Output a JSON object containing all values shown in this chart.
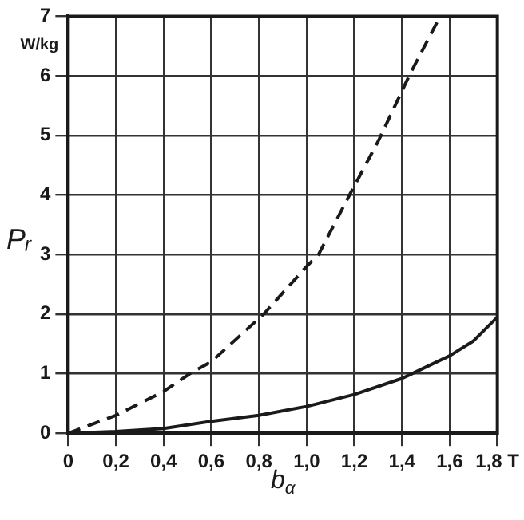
{
  "chart_data": {
    "type": "line",
    "xlabel": "b$_{α}$",
    "ylabel": "Pᵣ",
    "annotations": [
      "W/kg"
    ],
    "xlim": [
      0,
      1.8
    ],
    "xticks": [
      0,
      {
        "value": 0.2,
        "label": "0,2"
      },
      {
        "value": 0.4,
        "label": "0,4"
      },
      {
        "value": 0.6,
        "label": "0,6"
      },
      {
        "value": 0.8,
        "label": "0,8"
      },
      {
        "value": 1.0,
        "label": "1,0"
      },
      {
        "value": 1.2,
        "label": "1,2"
      },
      {
        "value": 1.4,
        "label": "1,4"
      },
      {
        "value": 1.6,
        "label": "1,6"
      },
      {
        "value": 1.8,
        "label": "1,8 T"
      }
    ],
    "ylim": [
      0,
      7
    ],
    "yticks": [
      0,
      1,
      2,
      3,
      4,
      5,
      6,
      7
    ],
    "grid": true,
    "legend": false,
    "marker": "none",
    "series": [
      {
        "color": "#1a1a1a",
        "line_style": "dashed",
        "x": [
          0,
          0.2,
          0.4,
          0.51,
          0.6,
          0.82,
          1.0,
          1.05,
          1.18,
          1.3,
          1.43,
          1.56
        ],
        "values": [
          0,
          0.3,
          0.7,
          1,
          1.2,
          2,
          2.8,
          3,
          4,
          4.9,
          6,
          7
        ]
      },
      {
        "color": "#1a1a1a",
        "line_style": "solid",
        "x": [
          0,
          0.2,
          0.4,
          0.6,
          0.8,
          1.0,
          1.2,
          1.4,
          1.6,
          1.7,
          1.8
        ],
        "values": [
          0,
          0.03,
          0.08,
          0.2,
          0.3,
          0.45,
          0.65,
          0.92,
          1.3,
          1.55,
          1.95
        ]
      }
    ]
  }
}
